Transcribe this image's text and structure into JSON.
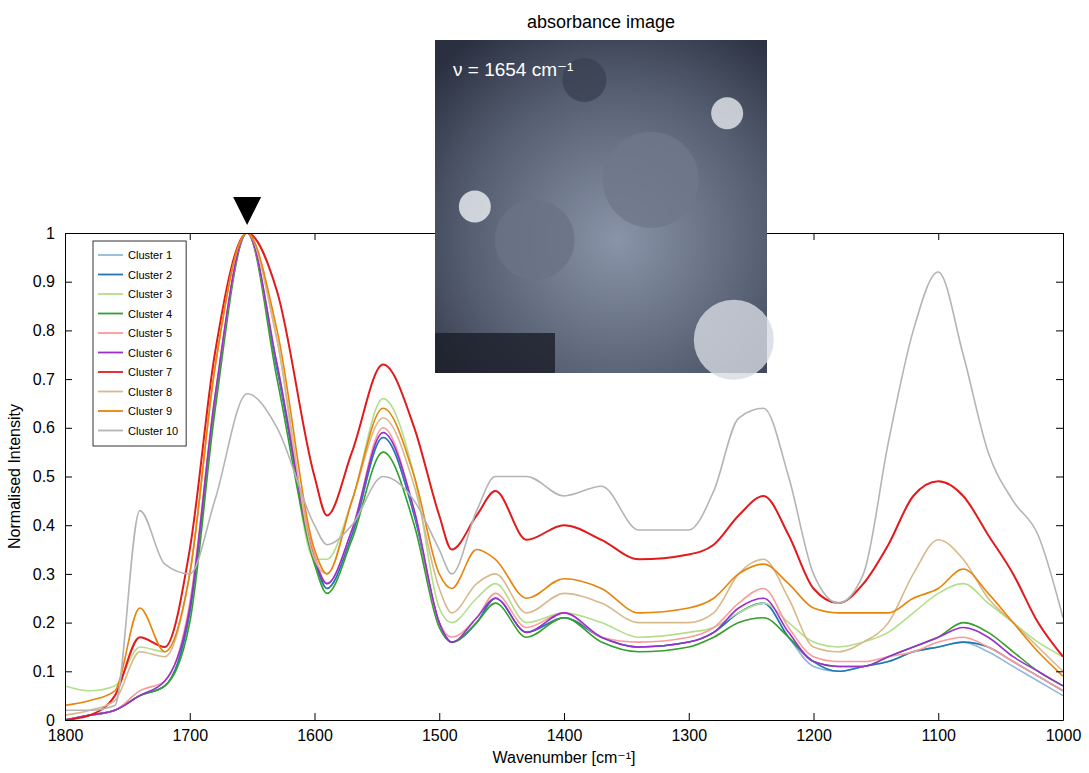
{
  "chart_data": {
    "type": "line",
    "x_label": "Wavenumber [cm⁻¹]",
    "y_label": "Normalised Intensity",
    "xlim": [
      1800,
      1000
    ],
    "ylim": [
      0,
      1
    ],
    "xticks": [
      1800,
      1700,
      1600,
      1500,
      1400,
      1300,
      1200,
      1100,
      1000
    ],
    "yticks": [
      0,
      0.1,
      0.2,
      0.3,
      0.4,
      0.5,
      0.6,
      0.7,
      0.8,
      0.9,
      1
    ],
    "grid": false,
    "legend": "top-left",
    "inset": {
      "title": "absorbance image",
      "label": "ν = 1654 cm⁻¹"
    },
    "annotations": [
      {
        "x": 1654,
        "marker": "triangle"
      }
    ],
    "x": [
      1800,
      1780,
      1760,
      1740,
      1720,
      1700,
      1680,
      1654,
      1630,
      1600,
      1590,
      1570,
      1545,
      1520,
      1500,
      1490,
      1470,
      1455,
      1430,
      1400,
      1370,
      1340,
      1300,
      1280,
      1260,
      1240,
      1220,
      1200,
      1180,
      1160,
      1140,
      1120,
      1100,
      1080,
      1060,
      1040,
      1020,
      1000
    ],
    "series": [
      {
        "name": "Cluster 1",
        "color": "#8fb8de",
        "values": [
          0.0,
          0.01,
          0.02,
          0.05,
          0.07,
          0.22,
          0.65,
          1.0,
          0.72,
          0.33,
          0.27,
          0.38,
          0.58,
          0.42,
          0.2,
          0.16,
          0.2,
          0.25,
          0.18,
          0.21,
          0.17,
          0.15,
          0.16,
          0.18,
          0.22,
          0.24,
          0.17,
          0.11,
          0.1,
          0.11,
          0.12,
          0.14,
          0.15,
          0.16,
          0.14,
          0.11,
          0.08,
          0.05
        ]
      },
      {
        "name": "Cluster 2",
        "color": "#1f78b4",
        "values": [
          0.0,
          0.01,
          0.02,
          0.05,
          0.07,
          0.22,
          0.65,
          1.0,
          0.72,
          0.33,
          0.27,
          0.38,
          0.58,
          0.42,
          0.2,
          0.16,
          0.2,
          0.25,
          0.18,
          0.21,
          0.17,
          0.15,
          0.16,
          0.18,
          0.22,
          0.24,
          0.17,
          0.12,
          0.1,
          0.11,
          0.12,
          0.14,
          0.15,
          0.16,
          0.15,
          0.12,
          0.09,
          0.06
        ]
      },
      {
        "name": "Cluster 3",
        "color": "#b2df8a",
        "values": [
          0.07,
          0.06,
          0.07,
          0.15,
          0.14,
          0.3,
          0.72,
          1.0,
          0.78,
          0.33,
          0.33,
          0.45,
          0.66,
          0.5,
          0.23,
          0.2,
          0.25,
          0.28,
          0.2,
          0.22,
          0.2,
          0.17,
          0.18,
          0.19,
          0.22,
          0.24,
          0.2,
          0.16,
          0.15,
          0.16,
          0.18,
          0.22,
          0.26,
          0.28,
          0.24,
          0.2,
          0.16,
          0.13
        ]
      },
      {
        "name": "Cluster 4",
        "color": "#33a02c",
        "values": [
          0.0,
          0.01,
          0.02,
          0.05,
          0.07,
          0.2,
          0.63,
          1.0,
          0.7,
          0.32,
          0.26,
          0.37,
          0.55,
          0.4,
          0.19,
          0.16,
          0.2,
          0.24,
          0.17,
          0.21,
          0.16,
          0.14,
          0.15,
          0.17,
          0.2,
          0.21,
          0.17,
          0.12,
          0.11,
          0.11,
          0.13,
          0.15,
          0.17,
          0.2,
          0.18,
          0.14,
          0.1,
          0.07
        ]
      },
      {
        "name": "Cluster 5",
        "color": "#fb9a99",
        "values": [
          0.0,
          0.01,
          0.02,
          0.06,
          0.08,
          0.24,
          0.66,
          1.0,
          0.73,
          0.34,
          0.28,
          0.39,
          0.6,
          0.43,
          0.2,
          0.17,
          0.21,
          0.26,
          0.19,
          0.22,
          0.17,
          0.16,
          0.17,
          0.19,
          0.24,
          0.27,
          0.19,
          0.13,
          0.12,
          0.12,
          0.13,
          0.14,
          0.16,
          0.17,
          0.15,
          0.12,
          0.09,
          0.06
        ]
      },
      {
        "name": "Cluster 6",
        "color": "#9a2fd0",
        "values": [
          0.0,
          0.01,
          0.02,
          0.05,
          0.08,
          0.23,
          0.66,
          1.0,
          0.73,
          0.33,
          0.28,
          0.39,
          0.59,
          0.43,
          0.2,
          0.16,
          0.21,
          0.25,
          0.18,
          0.22,
          0.17,
          0.15,
          0.16,
          0.18,
          0.23,
          0.25,
          0.18,
          0.12,
          0.11,
          0.11,
          0.13,
          0.15,
          0.17,
          0.19,
          0.17,
          0.13,
          0.1,
          0.07
        ]
      },
      {
        "name": "Cluster 7",
        "color": "#e31a1c",
        "values": [
          0.0,
          0.01,
          0.05,
          0.17,
          0.15,
          0.35,
          0.75,
          1.0,
          0.88,
          0.5,
          0.42,
          0.55,
          0.73,
          0.6,
          0.42,
          0.35,
          0.42,
          0.47,
          0.37,
          0.4,
          0.37,
          0.33,
          0.34,
          0.36,
          0.42,
          0.46,
          0.38,
          0.27,
          0.24,
          0.28,
          0.36,
          0.46,
          0.49,
          0.46,
          0.38,
          0.3,
          0.2,
          0.13
        ]
      },
      {
        "name": "Cluster 8",
        "color": "#d8b98c",
        "values": [
          0.01,
          0.02,
          0.04,
          0.14,
          0.13,
          0.3,
          0.72,
          1.0,
          0.78,
          0.33,
          0.3,
          0.45,
          0.62,
          0.48,
          0.27,
          0.22,
          0.28,
          0.3,
          0.22,
          0.26,
          0.24,
          0.2,
          0.2,
          0.22,
          0.3,
          0.33,
          0.25,
          0.15,
          0.14,
          0.16,
          0.2,
          0.3,
          0.37,
          0.33,
          0.25,
          0.2,
          0.15,
          0.1
        ]
      },
      {
        "name": "Cluster 9",
        "color": "#e8830c",
        "values": [
          0.03,
          0.04,
          0.06,
          0.23,
          0.14,
          0.3,
          0.72,
          1.0,
          0.8,
          0.35,
          0.3,
          0.45,
          0.64,
          0.5,
          0.3,
          0.27,
          0.35,
          0.33,
          0.25,
          0.29,
          0.27,
          0.22,
          0.23,
          0.25,
          0.3,
          0.32,
          0.28,
          0.23,
          0.22,
          0.22,
          0.22,
          0.25,
          0.27,
          0.31,
          0.26,
          0.2,
          0.14,
          0.09
        ]
      },
      {
        "name": "Cluster 10",
        "color": "#b4b4b4",
        "values": [
          0.02,
          0.02,
          0.03,
          0.43,
          0.32,
          0.3,
          0.45,
          0.67,
          0.6,
          0.4,
          0.36,
          0.4,
          0.5,
          0.45,
          0.35,
          0.3,
          0.43,
          0.5,
          0.5,
          0.46,
          0.48,
          0.39,
          0.39,
          0.47,
          0.62,
          0.64,
          0.5,
          0.3,
          0.24,
          0.3,
          0.57,
          0.8,
          0.92,
          0.75,
          0.55,
          0.45,
          0.38,
          0.21
        ]
      }
    ]
  }
}
